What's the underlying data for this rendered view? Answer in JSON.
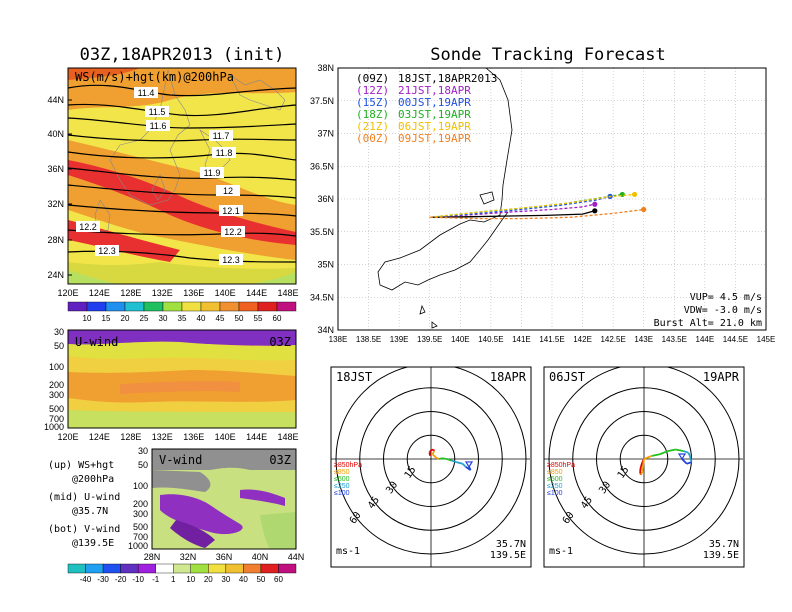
{
  "map_panel": {
    "title": "03Z,18APR2013 (init)",
    "label": "WS(m/s)+hgt(km)@200hPa",
    "lat_labels": [
      "44N",
      "40N",
      "36N",
      "32N",
      "28N",
      "24N"
    ],
    "lon_labels": [
      "120E",
      "124E",
      "128E",
      "132E",
      "136E",
      "140E",
      "144E",
      "148E"
    ],
    "contour_labels": [
      "11.4",
      "11.5",
      "11.6",
      "11.7",
      "11.8",
      "11.9",
      "12",
      "12.1",
      "12.2",
      "12.2",
      "12.3",
      "12.3"
    ],
    "colorbar": [
      "10",
      "15",
      "20",
      "25",
      "30",
      "35",
      "40",
      "45",
      "50",
      "55",
      "60"
    ]
  },
  "u_panel": {
    "label": "U-wind",
    "time": "03Z",
    "pressure_labels": [
      "30",
      "50",
      "100",
      "200",
      "300",
      "500",
      "700",
      "1000"
    ],
    "lon_labels": [
      "120E",
      "124E",
      "128E",
      "132E",
      "136E",
      "140E",
      "144E",
      "148E"
    ]
  },
  "v_panel": {
    "label": "V-wind",
    "time": "03Z",
    "pressure_labels": [
      "30",
      "50",
      "100",
      "200",
      "300",
      "500",
      "700",
      "1000"
    ],
    "lat_labels": [
      "28N",
      "32N",
      "36N",
      "40N",
      "44N"
    ],
    "colorbar": [
      "-40",
      "-30",
      "-20",
      "-10",
      "-1",
      "1",
      "10",
      "20",
      "30",
      "40",
      "50",
      "60"
    ]
  },
  "legend_text": {
    "up": "(up) WS+hgt",
    "up2": "@200hPa",
    "mid": "(mid) U-wind",
    "mid2": "@35.7N",
    "bot": "(bot) V-wind",
    "bot2": "@139.5E"
  },
  "tracking": {
    "title": "Sonde Tracking Forecast",
    "lat_labels": [
      "38N",
      "37.5N",
      "37N",
      "36.5N",
      "36N",
      "35.5N",
      "35N",
      "34.5N",
      "34N"
    ],
    "lon_labels": [
      "138E",
      "138.5E",
      "139E",
      "139.5E",
      "140E",
      "140.5E",
      "141E",
      "141.5E",
      "142E",
      "142.5E",
      "143E",
      "143.5E",
      "144E",
      "144.5E",
      "145E"
    ],
    "legend": [
      {
        "z": "(09Z)",
        "jst": "18JST,18APR2013",
        "color": "#000000"
      },
      {
        "z": "(12Z)",
        "jst": "21JST,18APR",
        "color": "#a020c8"
      },
      {
        "z": "(15Z)",
        "jst": "00JST,19APR",
        "color": "#2050e0"
      },
      {
        "z": "(18Z)",
        "jst": "03JST,19APR",
        "color": "#20b020"
      },
      {
        "z": "(21Z)",
        "jst": "06JST,19APR",
        "color": "#f0c000"
      },
      {
        "z": "(00Z)",
        "jst": "09JST,19APR",
        "color": "#f08020"
      }
    ],
    "params": [
      "VUP= 4.5 m/s",
      "VDW= -3.0 m/s",
      "Burst Alt= 21.0 km"
    ]
  },
  "hodo_left": {
    "jst": "18JST",
    "date": "18APR",
    "rings": [
      "15",
      "30",
      "45",
      "60"
    ],
    "levels": [
      "≥850hPa",
      "≤850",
      "≤500",
      "≤250",
      "≤100"
    ],
    "unit": "ms-1",
    "lat": "35.7N",
    "lon": "139.5E"
  },
  "hodo_right": {
    "jst": "06JST",
    "date": "19APR",
    "rings": [
      "15",
      "30",
      "45",
      "60"
    ],
    "levels": [
      "≥850hPa",
      "≤850",
      "≤500",
      "≤250",
      "≤100"
    ],
    "unit": "ms-1",
    "lat": "35.7N",
    "lon": "139.5E"
  },
  "level_colors": [
    "#e00000",
    "#f0a000",
    "#20c020",
    "#20a0d0",
    "#2040e0"
  ],
  "chart_data": [
    {
      "type": "heatmap",
      "title": "03Z,18APR2013 (init)",
      "subtitle": "WS(m/s)+hgt(km)@200hPa",
      "x_ticks": [
        "120E",
        "124E",
        "128E",
        "132E",
        "136E",
        "140E",
        "144E",
        "148E"
      ],
      "y_ticks": [
        "24N",
        "28N",
        "32N",
        "36N",
        "40N",
        "44N"
      ],
      "contours_km": [
        11.4,
        11.5,
        11.6,
        11.7,
        11.8,
        11.9,
        12,
        12.1,
        12.2,
        12.3
      ],
      "colorbar_levels": [
        10,
        15,
        20,
        25,
        30,
        35,
        40,
        45,
        50,
        55,
        60
      ]
    },
    {
      "type": "line",
      "title": "Sonde Tracking Forecast",
      "xlim": [
        138,
        145
      ],
      "ylim": [
        34,
        38
      ],
      "launch": [
        139.5,
        35.7
      ],
      "series": [
        {
          "name": "(09Z) 18JST,18APR2013",
          "x": [
            139.5,
            140.2,
            140.8,
            141.4,
            142.0,
            142.2
          ],
          "y": [
            35.72,
            35.73,
            35.74,
            35.75,
            35.77,
            35.82
          ]
        },
        {
          "name": "(12Z) 21JST,18APR",
          "x": [
            139.5,
            140.2,
            140.8,
            141.5,
            142.0,
            142.2
          ],
          "y": [
            35.72,
            35.76,
            35.8,
            35.84,
            35.88,
            35.92
          ]
        },
        {
          "name": "(15Z) 00JST,19APR",
          "x": [
            139.5,
            140.3,
            141.0,
            141.6,
            142.2,
            142.45
          ],
          "y": [
            35.72,
            35.78,
            35.84,
            35.9,
            35.98,
            36.04
          ]
        },
        {
          "name": "(18Z) 03JST,19APR",
          "x": [
            139.5,
            140.3,
            141.0,
            141.7,
            142.3,
            142.65
          ],
          "y": [
            35.72,
            35.8,
            35.86,
            35.93,
            36.02,
            36.07
          ]
        },
        {
          "name": "(21Z) 06JST,19APR",
          "x": [
            139.5,
            140.3,
            141.0,
            141.8,
            142.4,
            142.85
          ],
          "y": [
            35.72,
            35.8,
            35.86,
            35.94,
            36.03,
            36.07
          ]
        },
        {
          "name": "(00Z) 09JST,19APR",
          "x": [
            139.5,
            140.3,
            141.0,
            141.8,
            142.5,
            143.0
          ],
          "y": [
            35.72,
            35.7,
            35.7,
            35.72,
            35.78,
            35.84
          ]
        }
      ]
    },
    {
      "type": "line",
      "title": "18JST 18APR",
      "x_label": "ms-1",
      "rings": [
        15,
        30,
        45,
        60
      ],
      "u": [
        -0.5,
        -1,
        0,
        1.5,
        2,
        1,
        3,
        5,
        7,
        10,
        13,
        16,
        20,
        22,
        25,
        24
      ],
      "v": [
        2,
        4,
        5.5,
        6,
        5,
        3,
        1,
        0,
        0.5,
        0,
        -1,
        -2,
        -3,
        -5,
        -7,
        -5
      ]
    },
    {
      "type": "line",
      "title": "06JST 19APR",
      "x_label": "ms-1",
      "rings": [
        15,
        30,
        45,
        60
      ],
      "u": [
        0,
        -1,
        -2,
        -2.5,
        -2,
        -1,
        0,
        5,
        10,
        15,
        20,
        25,
        28,
        29,
        30,
        27,
        24
      ],
      "v": [
        0,
        -2,
        -5,
        -8,
        -10,
        -8,
        0,
        2,
        3,
        5,
        6,
        5,
        4,
        2,
        -2,
        -3,
        0
      ]
    }
  ]
}
